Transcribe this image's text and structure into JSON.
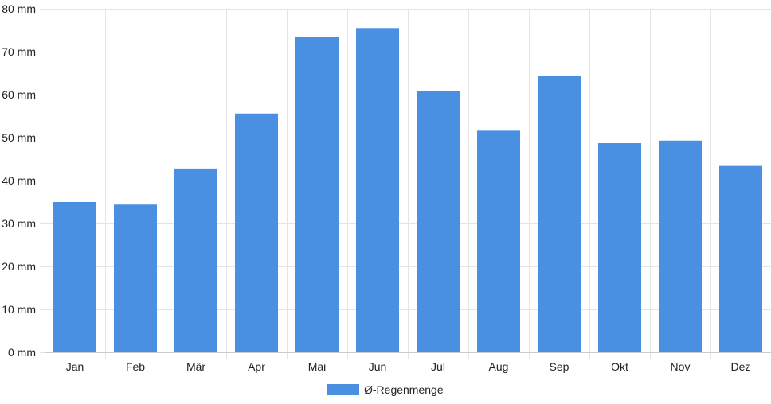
{
  "chart_data": {
    "type": "bar",
    "title": "",
    "xlabel": "",
    "ylabel": "",
    "categories": [
      "Jan",
      "Feb",
      "Mär",
      "Apr",
      "Mai",
      "Jun",
      "Jul",
      "Aug",
      "Sep",
      "Okt",
      "Nov",
      "Dez"
    ],
    "series": [
      {
        "name": "Ø-Regenmenge",
        "color": "#4a90e2",
        "values": [
          35,
          34.4,
          42.8,
          55.6,
          73.4,
          75.5,
          60.8,
          51.6,
          64.3,
          48.7,
          49.3,
          43.4
        ]
      }
    ],
    "unit": "mm",
    "ylim": [
      0,
      80
    ],
    "yticks": [
      0,
      10,
      20,
      30,
      40,
      50,
      60,
      70,
      80
    ],
    "ytick_labels": [
      "0 mm",
      "10 mm",
      "20 mm",
      "30 mm",
      "40 mm",
      "50 mm",
      "60 mm",
      "70 mm",
      "80 mm"
    ],
    "grid": true,
    "legend_position": "bottom-center"
  }
}
